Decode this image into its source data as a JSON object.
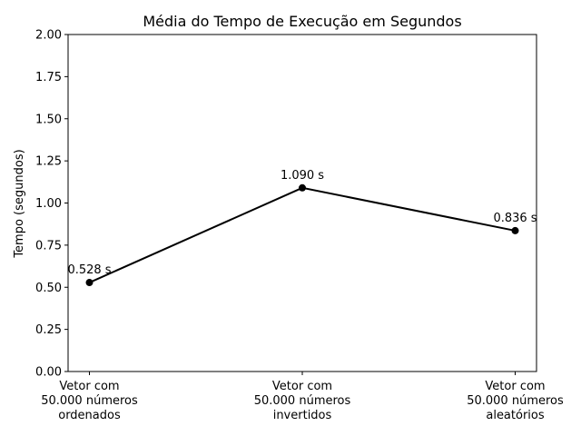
{
  "chart_data": {
    "type": "line",
    "title": "Média do Tempo de Execução em Segundos",
    "xlabel": "",
    "ylabel": "Tempo (segundos)",
    "ylim": [
      0,
      2
    ],
    "yticks": [
      "0.00",
      "0.25",
      "0.50",
      "0.75",
      "1.00",
      "1.25",
      "1.50",
      "1.75",
      "2.00"
    ],
    "categories": [
      [
        "Vetor com",
        "50.000 números",
        "ordenados"
      ],
      [
        "Vetor com",
        "50.000 números",
        "invertidos"
      ],
      [
        "Vetor com",
        "50.000 números",
        "aleatórios"
      ]
    ],
    "series": [
      {
        "values": [
          0.528,
          1.09,
          0.836
        ],
        "labels": [
          "0.528 s",
          "1.090 s",
          "0.836 s"
        ],
        "color": "#000000"
      }
    ],
    "grid": false,
    "legend": "none"
  }
}
